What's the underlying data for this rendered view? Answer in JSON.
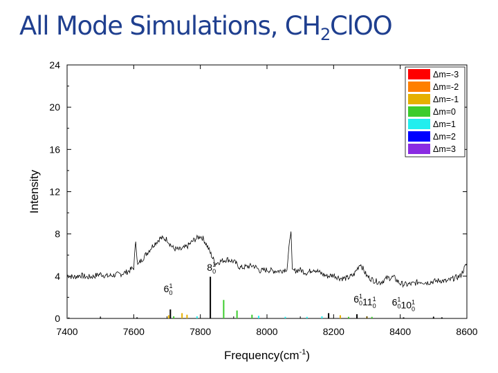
{
  "slide": {
    "title_prefix": "All Mode Simulations, CH",
    "title_subscript": "2",
    "title_suffix": "ClOO"
  },
  "chart_data": {
    "type": "bar",
    "xlabel": "Frequency(cm",
    "xlabel_sup": "-1",
    "xlabel_suffix": ")",
    "ylabel": "Intensity",
    "xlim": [
      7400,
      8600
    ],
    "ylim": [
      0,
      24
    ],
    "xticks": [
      7400,
      7600,
      7800,
      8000,
      8200,
      8400,
      8600
    ],
    "yticks": [
      0,
      4,
      8,
      12,
      16,
      20,
      24
    ],
    "grid": false,
    "legend_position": "top-right",
    "legend": [
      {
        "label": "Δm=-3",
        "color": "#ff0000"
      },
      {
        "label": "Δm=-2",
        "color": "#ff7f00"
      },
      {
        "label": "Δm=-1",
        "color": "#e6b000"
      },
      {
        "label": "Δm=0",
        "color": "#3ccc2c"
      },
      {
        "label": "Δm=1",
        "color": "#22eeee"
      },
      {
        "label": "Δm=2",
        "color": "#0000ff"
      },
      {
        "label": "Δm=3",
        "color": "#8a2be2"
      }
    ],
    "annotations": [
      {
        "mode": "6",
        "sup": "1",
        "sub": "0",
        "x": 7690,
        "y": 2.5
      },
      {
        "mode": "8",
        "sup": "1",
        "sub": "0",
        "x": 7820,
        "y": 4.5
      },
      {
        "mode": "6",
        "sup": "1",
        "sub": "0",
        "mode2": "11",
        "sup2": "1",
        "sub2": "0",
        "x": 8260,
        "y": 1.5
      },
      {
        "mode": "6",
        "sup": "1",
        "sub": "0",
        "mode2": "10",
        "sup2": "1",
        "sub2": "0",
        "x": 8375,
        "y": 1.2
      }
    ],
    "sticks": [
      {
        "x": 7405,
        "y": 0.08,
        "color": "#000000"
      },
      {
        "x": 7500,
        "y": 0.08,
        "color": "#000000"
      },
      {
        "x": 7610,
        "y": 0.1,
        "color": "#000000"
      },
      {
        "x": 7705,
        "y": 0.3,
        "color": "#e6b000"
      },
      {
        "x": 7710,
        "y": 0.85,
        "color": "#000000"
      },
      {
        "x": 7720,
        "y": 0.2,
        "color": "#3ccc2c"
      },
      {
        "x": 7745,
        "y": 0.5,
        "color": "#e6b000"
      },
      {
        "x": 7760,
        "y": 0.35,
        "color": "#e6b000"
      },
      {
        "x": 7790,
        "y": 0.2,
        "color": "#22eeee"
      },
      {
        "x": 7830,
        "y": 3.95,
        "color": "#000000"
      },
      {
        "x": 7870,
        "y": 1.75,
        "color": "#3ccc2c"
      },
      {
        "x": 7910,
        "y": 0.75,
        "color": "#3ccc2c"
      },
      {
        "x": 7955,
        "y": 0.35,
        "color": "#3ccc2c"
      },
      {
        "x": 7975,
        "y": 0.25,
        "color": "#22eeee"
      },
      {
        "x": 8055,
        "y": 0.15,
        "color": "#22eeee"
      },
      {
        "x": 8120,
        "y": 0.15,
        "color": "#22eeee"
      },
      {
        "x": 8165,
        "y": 0.2,
        "color": "#22eeee"
      },
      {
        "x": 8185,
        "y": 0.5,
        "color": "#000000"
      },
      {
        "x": 8220,
        "y": 0.3,
        "color": "#e6b000"
      },
      {
        "x": 8245,
        "y": 0.15,
        "color": "#3ccc2c"
      },
      {
        "x": 8270,
        "y": 0.4,
        "color": "#000000"
      },
      {
        "x": 8300,
        "y": 0.2,
        "color": "#e6b000"
      },
      {
        "x": 8315,
        "y": 0.15,
        "color": "#3ccc2c"
      },
      {
        "x": 8410,
        "y": 0.1,
        "color": "#000000"
      },
      {
        "x": 8500,
        "y": 0.12,
        "color": "#000000"
      },
      {
        "x": 8525,
        "y": 0.1,
        "color": "#000000"
      }
    ],
    "experimental_trace": {
      "x": [
        7400,
        7420,
        7440,
        7460,
        7480,
        7500,
        7520,
        7540,
        7560,
        7580,
        7600,
        7606,
        7612,
        7618,
        7640,
        7660,
        7680,
        7700,
        7710,
        7720,
        7740,
        7760,
        7780,
        7800,
        7810,
        7820,
        7830,
        7845,
        7860,
        7880,
        7900,
        7920,
        7940,
        7960,
        7980,
        8000,
        8020,
        8040,
        8060,
        8072,
        8076,
        8080,
        8100,
        8120,
        8140,
        8160,
        8180,
        8200,
        8220,
        8240,
        8260,
        8280,
        8300,
        8320,
        8340,
        8360,
        8380,
        8400,
        8420,
        8440,
        8460,
        8480,
        8500,
        8520,
        8540,
        8560,
        8580,
        8600
      ],
      "y": [
        4.1,
        3.9,
        4.1,
        3.9,
        4.0,
        4.2,
        4.0,
        4.1,
        4.2,
        4.4,
        4.8,
        7.4,
        5.0,
        5.3,
        6.2,
        7.0,
        7.6,
        7.5,
        7.0,
        6.6,
        6.5,
        6.8,
        7.4,
        7.8,
        7.5,
        6.9,
        6.2,
        5.2,
        5.4,
        5.6,
        5.4,
        4.8,
        4.9,
        5.0,
        4.5,
        4.6,
        4.5,
        4.5,
        4.7,
        8.5,
        4.4,
        4.5,
        4.6,
        4.3,
        4.7,
        4.3,
        4.0,
        4.1,
        3.8,
        3.8,
        4.1,
        5.2,
        4.0,
        3.6,
        3.4,
        3.8,
        3.9,
        3.3,
        3.2,
        3.3,
        3.5,
        3.4,
        3.5,
        3.6,
        3.5,
        3.8,
        4.0,
        5.2
      ]
    }
  }
}
